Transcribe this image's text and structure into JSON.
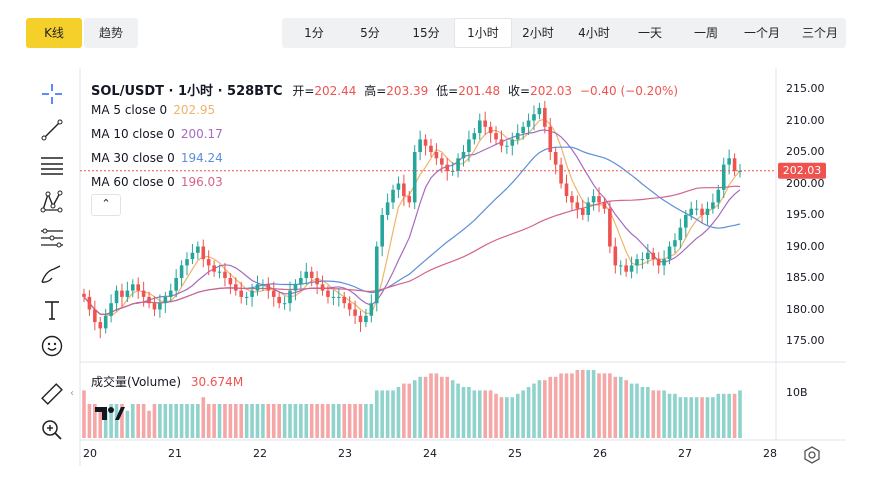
{
  "top_toggle": {
    "kline": "K线",
    "trend": "趋势"
  },
  "timeframes": [
    {
      "label": "1分",
      "active": false
    },
    {
      "label": "5分",
      "active": false
    },
    {
      "label": "15分",
      "active": false
    },
    {
      "label": "1小时",
      "active": true
    },
    {
      "label": "2小时",
      "active": false
    },
    {
      "label": "4小时",
      "active": false
    },
    {
      "label": "一天",
      "active": false
    },
    {
      "label": "一周",
      "active": false
    },
    {
      "label": "一个月",
      "active": false
    },
    {
      "label": "三个月",
      "active": false
    }
  ],
  "tools": [
    "crosshair-icon",
    "trend-line-icon",
    "fib-lines-icon",
    "pattern-icon",
    "prediction-icon",
    "brush-icon",
    "text-icon",
    "emoji-icon",
    "ruler-icon",
    "zoom-in-icon"
  ],
  "legend": {
    "symbol": "SOL/USDT · 1小时 · 528BTC",
    "open_label": "开=",
    "open": "202.44",
    "high_label": "高=",
    "high": "203.39",
    "low_label": "低=",
    "low": "201.48",
    "close_label": "收=",
    "close": "202.03",
    "change": "−0.40 (−0.20%)"
  },
  "ma": [
    {
      "label": "MA 5 close 0",
      "value": "202.95",
      "color": "#f0b46a"
    },
    {
      "label": "MA 10 close 0",
      "value": "200.17",
      "color": "#a66bbe"
    },
    {
      "label": "MA 30 close 0",
      "value": "194.24",
      "color": "#5b8fd9"
    },
    {
      "label": "MA 60 close 0",
      "value": "196.03",
      "color": "#d4638c"
    }
  ],
  "volume": {
    "label": "成交量(Volume)",
    "value": "30.674M",
    "axis_label": "10B"
  },
  "price_tag": "202.03",
  "colors": {
    "up": "#26a69a",
    "down": "#ef5350",
    "accent": "#f5d02a"
  },
  "chart_data": {
    "type": "candlestick",
    "y_ticks": [
      "215.00",
      "210.00",
      "205.00",
      "200.00",
      "195.00",
      "190.00",
      "185.00",
      "180.00",
      "175.00"
    ],
    "x_ticks": [
      "20",
      "21",
      "22",
      "23",
      "24",
      "25",
      "26",
      "27",
      "28"
    ],
    "ylim": [
      172,
      218
    ],
    "current_price": 202.03,
    "close_series": [
      182,
      180,
      178,
      177,
      179,
      181,
      183,
      182,
      183,
      184,
      183,
      182,
      181,
      180,
      181,
      182,
      183,
      185,
      187,
      188,
      189,
      190,
      188,
      187,
      186,
      186,
      185,
      184,
      183,
      182,
      182,
      183,
      184,
      184,
      183,
      182,
      181,
      181,
      183,
      184,
      185,
      186,
      185,
      184,
      183,
      182,
      182,
      182,
      181,
      180,
      179,
      178,
      179,
      181,
      190,
      195,
      197,
      199,
      200,
      198,
      197,
      205,
      207,
      206,
      205,
      204,
      203,
      202,
      202,
      204,
      205,
      207,
      208,
      210,
      209,
      208,
      207,
      206,
      206,
      207,
      208,
      209,
      210,
      211,
      212,
      209,
      205,
      203,
      200,
      198,
      197,
      196,
      195,
      197,
      198,
      197,
      196,
      190,
      187,
      187,
      186,
      187,
      188,
      188,
      189,
      188,
      187,
      188,
      190,
      191,
      193,
      195,
      196,
      196,
      195,
      196,
      197,
      199,
      203,
      204,
      202,
      202
    ],
    "volume_series": [
      0.7,
      0.5,
      0.5,
      0.4,
      0.4,
      0.5,
      0.5,
      0.5,
      0.4,
      0.5,
      0.5,
      0.5,
      0.4,
      0.5,
      0.5,
      0.5,
      0.5,
      0.5,
      0.5,
      0.5,
      0.5,
      0.5,
      0.6,
      0.5,
      0.5,
      0.5,
      0.5,
      0.5,
      0.5,
      0.5,
      0.5,
      0.5,
      0.5,
      0.5,
      0.5,
      0.5,
      0.5,
      0.5,
      0.5,
      0.5,
      0.5,
      0.5,
      0.5,
      0.5,
      0.5,
      0.5,
      0.5,
      0.5,
      0.5,
      0.5,
      0.5,
      0.5,
      0.5,
      0.5,
      0.7,
      0.7,
      0.7,
      0.7,
      0.75,
      0.8,
      0.8,
      0.85,
      0.9,
      0.9,
      0.95,
      0.95,
      0.9,
      0.9,
      0.85,
      0.8,
      0.75,
      0.75,
      0.7,
      0.7,
      0.7,
      0.7,
      0.65,
      0.6,
      0.6,
      0.6,
      0.65,
      0.7,
      0.75,
      0.8,
      0.85,
      0.85,
      0.9,
      0.9,
      0.95,
      0.95,
      0.95,
      1.0,
      1.0,
      1.0,
      1.0,
      0.95,
      0.95,
      0.95,
      0.9,
      0.9,
      0.85,
      0.8,
      0.8,
      0.75,
      0.75,
      0.7,
      0.7,
      0.7,
      0.65,
      0.65,
      0.6,
      0.6,
      0.6,
      0.6,
      0.6,
      0.6,
      0.6,
      0.65,
      0.65,
      0.65,
      0.65,
      0.7
    ]
  }
}
